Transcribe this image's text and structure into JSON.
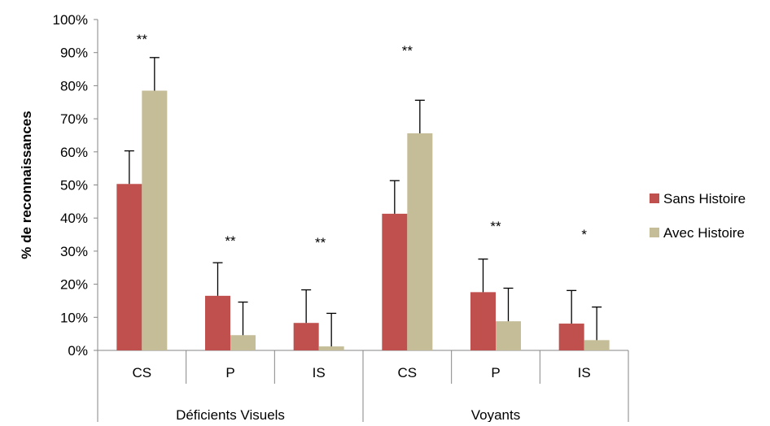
{
  "chart_data": {
    "type": "bar",
    "title": "",
    "xlabel": "",
    "ylabel": "% de reconnaissances",
    "ylim": [
      0,
      100
    ],
    "yticks": [
      "0%",
      "10%",
      "20%",
      "30%",
      "40%",
      "50%",
      "60%",
      "70%",
      "80%",
      "90%",
      "100%"
    ],
    "grid": false,
    "legend_position": "right",
    "groups": [
      {
        "label": "Déficients Visuels",
        "categories": [
          "CS",
          "P",
          "IS"
        ]
      },
      {
        "label": "Voyants",
        "categories": [
          "CS",
          "P",
          "IS"
        ]
      }
    ],
    "categories": [
      "CS",
      "P",
      "IS",
      "CS",
      "P",
      "IS"
    ],
    "significance": [
      "**",
      "**",
      "**",
      "**",
      "**",
      "*"
    ],
    "series": [
      {
        "name": "Sans Histoire",
        "color": "#C0504D",
        "values": [
          50.3,
          16.5,
          8.3,
          41.3,
          17.6,
          8.1
        ],
        "error": [
          10,
          10,
          10,
          10,
          10,
          10
        ]
      },
      {
        "name": "Avec Histoire",
        "color": "#C4BD97",
        "values": [
          78.5,
          4.6,
          1.2,
          65.6,
          8.8,
          3.1
        ],
        "error": [
          10,
          10,
          10,
          10,
          10,
          10
        ]
      }
    ]
  }
}
